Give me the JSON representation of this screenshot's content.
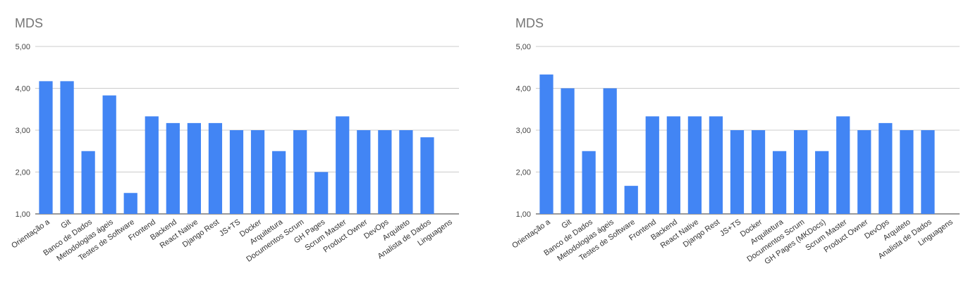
{
  "chart_data": [
    {
      "type": "bar",
      "title": "MDS",
      "xlabel": "",
      "ylabel": "",
      "ylim": [
        1,
        5
      ],
      "yticks": [
        "1,00",
        "2,00",
        "3,00",
        "4,00",
        "5,00"
      ],
      "grid": true,
      "color": "#4285f4",
      "categories": [
        "Orientação a",
        "Git",
        "Banco de Dados",
        "Metodologias ágeis",
        "Testes de Software",
        "Frontend",
        "Backend",
        "React Native",
        "Django Rest",
        "JS+TS",
        "Docker",
        "Arquitetura",
        "Documentos Scrum",
        "GH Pages",
        "Scrum Master",
        "Product Owner",
        "DevOps",
        "Arquiteto",
        "Analista de Dados",
        "Linguagens"
      ],
      "values": [
        4.17,
        4.17,
        2.5,
        3.83,
        1.5,
        3.33,
        3.17,
        3.17,
        3.17,
        3.0,
        3.0,
        2.5,
        3.0,
        2.0,
        3.33,
        3.0,
        3.0,
        3.0,
        2.83,
        null
      ]
    },
    {
      "type": "bar",
      "title": "MDS",
      "xlabel": "",
      "ylabel": "",
      "ylim": [
        1,
        5
      ],
      "yticks": [
        "1,00",
        "2,00",
        "3,00",
        "4,00",
        "5,00"
      ],
      "grid": true,
      "color": "#4285f4",
      "categories": [
        "Orientação a",
        "Git",
        "Banco de Dados",
        "Metodologias ágeis",
        "Testes de Software",
        "Frontend",
        "Backend",
        "React Native",
        "Django Rest",
        "JS+TS",
        "Docker",
        "Arquitetura",
        "Documentos Scrum",
        "GH Pages (MKDocs)",
        "Scrum Master",
        "Product Owner",
        "DevOps",
        "Arquiteto",
        "Analista de Dados",
        "Linguagens"
      ],
      "values": [
        4.33,
        4.0,
        2.5,
        4.0,
        1.67,
        3.33,
        3.33,
        3.33,
        3.33,
        3.0,
        3.0,
        2.5,
        3.0,
        2.5,
        3.33,
        3.0,
        3.17,
        3.0,
        3.0,
        null
      ]
    }
  ]
}
